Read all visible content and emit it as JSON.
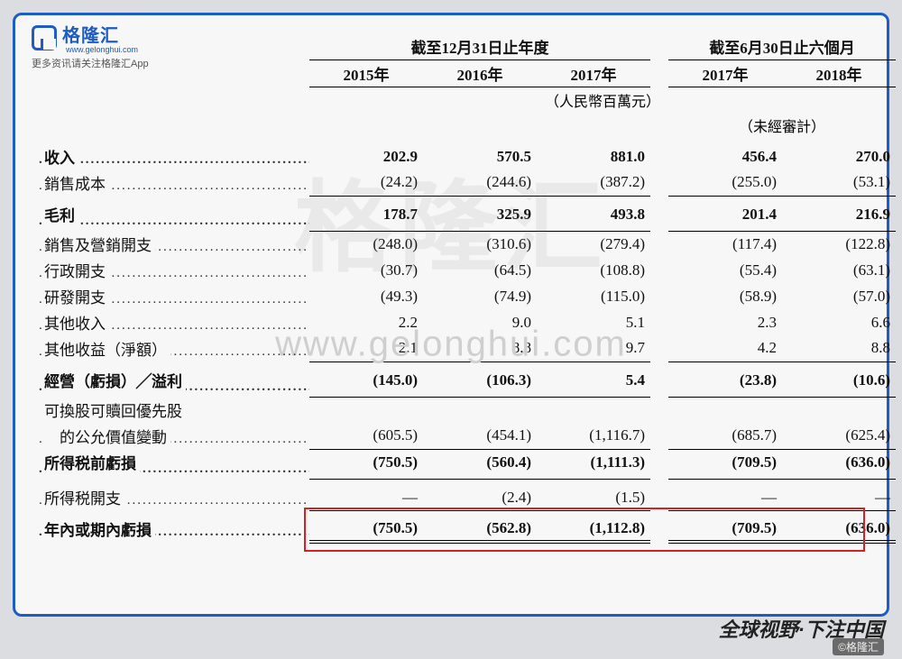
{
  "logo": {
    "brand": "格隆汇",
    "sub": "www.gelonghui.com",
    "tagline": "更多资讯请关注格隆汇App"
  },
  "watermark": {
    "big": "格隆汇",
    "url": "www.gelonghui.com"
  },
  "header": {
    "group1": "截至12月31日止年度",
    "group2": "截至6月30日止六個月",
    "cols": [
      "2015年",
      "2016年",
      "2017年",
      "2017年",
      "2018年"
    ],
    "unit": "（人民幣百萬元）",
    "unaudited": "（未經審計）"
  },
  "rows": {
    "revenue": {
      "label": "收入",
      "v": [
        "202.9",
        "570.5",
        "881.0",
        "456.4",
        "270.0"
      ],
      "bold": true
    },
    "cogs": {
      "label": "銷售成本",
      "v": [
        "(24.2)",
        "(244.6)",
        "(387.2)",
        "(255.0)",
        "(53.1)"
      ]
    },
    "gross": {
      "label": "毛利",
      "v": [
        "178.7",
        "325.9",
        "493.8",
        "201.4",
        "216.9"
      ],
      "bold": true
    },
    "selling": {
      "label": "銷售及營銷開支",
      "v": [
        "(248.0)",
        "(310.6)",
        "(279.4)",
        "(117.4)",
        "(122.8)"
      ]
    },
    "admin": {
      "label": "行政開支",
      "v": [
        "(30.7)",
        "(64.5)",
        "(108.8)",
        "(55.4)",
        "(63.1)"
      ]
    },
    "rd": {
      "label": "研發開支",
      "v": [
        "(49.3)",
        "(74.9)",
        "(115.0)",
        "(58.9)",
        "(57.0)"
      ]
    },
    "otherinc": {
      "label": "其他收入",
      "v": [
        "2.2",
        "9.0",
        "5.1",
        "2.3",
        "6.6"
      ]
    },
    "othergain": {
      "label": "其他收益（淨額）",
      "v": [
        "2.1",
        "8.8",
        "9.7",
        "4.2",
        "8.8"
      ]
    },
    "oploss": {
      "label": "經營（虧損）╱溢利",
      "v": [
        "(145.0)",
        "(106.3)",
        "5.4",
        "(23.8)",
        "(10.6)"
      ],
      "bold": true
    },
    "conv1": {
      "label": "可換股可贖回優先股",
      "v": [
        "",
        "",
        "",
        "",
        ""
      ]
    },
    "conv2": {
      "label": "　的公允價值變動",
      "v": [
        "(605.5)",
        "(454.1)",
        "(1,116.7)",
        "(685.7)",
        "(625.4)"
      ]
    },
    "pretax": {
      "label": "所得税前虧損",
      "v": [
        "(750.5)",
        "(560.4)",
        "(1,111.3)",
        "(709.5)",
        "(636.0)"
      ],
      "bold": true
    },
    "tax": {
      "label": "所得税開支",
      "v": [
        "—",
        "(2.4)",
        "(1.5)",
        "—",
        "—"
      ]
    },
    "netloss": {
      "label": "年內或期內虧損",
      "v": [
        "(750.5)",
        "(562.8)",
        "(1,112.8)",
        "(709.5)",
        "(636.0)"
      ],
      "bold": true
    }
  },
  "footer": {
    "slogan": "全球视野·下注中国",
    "credit": "©格隆汇"
  },
  "colors": {
    "frame": "#1e5cc4",
    "highlight": "#d92020",
    "bg": "#dcdde0",
    "panel": "#f7f7f8"
  }
}
